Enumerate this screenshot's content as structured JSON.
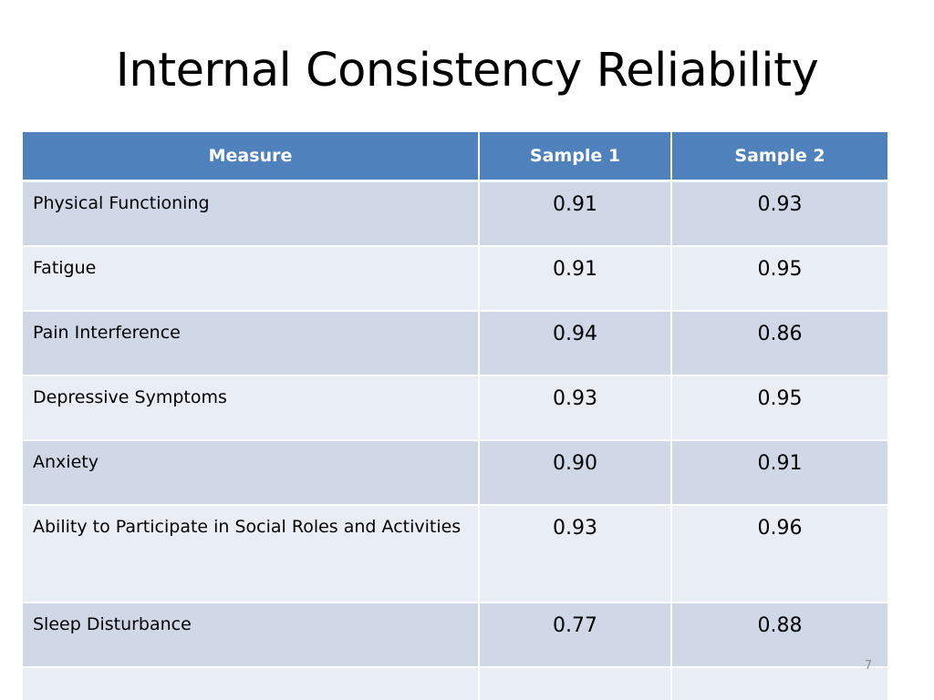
{
  "slide": {
    "title": "Internal Consistency Reliability",
    "page_number": "7"
  },
  "table": {
    "headers": [
      "Measure",
      "Sample 1",
      "Sample 2"
    ],
    "rows": [
      {
        "measure": "Physical Functioning",
        "sample1": "0.91",
        "sample2": "0.93"
      },
      {
        "measure": "Fatigue",
        "sample1": "0.91",
        "sample2": "0.95"
      },
      {
        "measure": "Pain Interference",
        "sample1": "0.94",
        "sample2": "0.86"
      },
      {
        "measure": "Depressive Symptoms",
        "sample1": "0.93",
        "sample2": "0.95"
      },
      {
        "measure": "Anxiety",
        "sample1": "0.90",
        "sample2": "0.91"
      },
      {
        "measure": "Ability to Participate in Social Roles and Activities",
        "sample1": "0.93",
        "sample2": "0.96"
      },
      {
        "measure": "Sleep Disturbance",
        "sample1": "0.77",
        "sample2": "0.88"
      },
      {
        "measure": "",
        "sample1": "",
        "sample2": ""
      }
    ]
  },
  "colors": {
    "header_bg": "#4f81bd",
    "row_band_dark": "#d0d8e8",
    "row_band_light": "#e9edf4"
  }
}
